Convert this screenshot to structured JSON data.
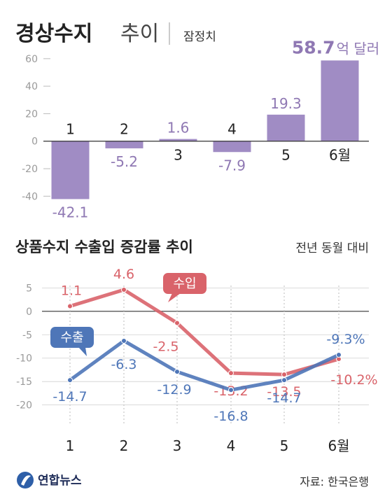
{
  "header": {
    "title": "경상수지",
    "title_suffix": "추이",
    "note": "잠정치"
  },
  "footer": {
    "source": "자료: 한국은행",
    "logo_text": "연합뉴스"
  },
  "colors": {
    "bar": "#a08cc4",
    "bar_label": "#8f78b3",
    "import": "#d9636a",
    "export": "#4e76b8",
    "grid": "#cfcfcf",
    "zero_line": "#333333"
  },
  "chart_data": [
    {
      "type": "bar",
      "title": "",
      "categories": [
        "1",
        "2",
        "3",
        "4",
        "5",
        "6월"
      ],
      "values": [
        -42.1,
        -5.2,
        1.6,
        -7.9,
        19.3,
        58.7
      ],
      "value_labels": [
        "-42.1",
        "-5.2",
        "1.6",
        "-7.9",
        "19.3",
        "58.7"
      ],
      "last_value_unit": "억 달러",
      "y_ticks": [
        60,
        40,
        20,
        0,
        -20,
        -40
      ],
      "ylim": [
        -50,
        65
      ],
      "grid": false
    },
    {
      "type": "line",
      "title": "상품수지 수출입 증감률 추이",
      "note": "전년 동월 대비",
      "categories": [
        "1",
        "2",
        "3",
        "4",
        "5",
        "6월"
      ],
      "y_ticks": [
        5,
        0,
        -5,
        -10,
        -15,
        -20
      ],
      "ylim": [
        -22,
        7
      ],
      "grid": true,
      "series": [
        {
          "name": "수입",
          "values": [
            1.1,
            4.6,
            -2.5,
            -13.2,
            -13.5,
            -10.2
          ],
          "labels": [
            "1.1",
            "4.6",
            "-2.5",
            "-13.2",
            "-13.5",
            "-10.2%"
          ]
        },
        {
          "name": "수출",
          "values": [
            -14.7,
            -6.3,
            -12.9,
            -16.8,
            -14.7,
            -9.3
          ],
          "labels": [
            "-14.7",
            "-6.3",
            "-12.9",
            "-16.8",
            "-14.7",
            "-9.3%"
          ]
        }
      ]
    }
  ]
}
